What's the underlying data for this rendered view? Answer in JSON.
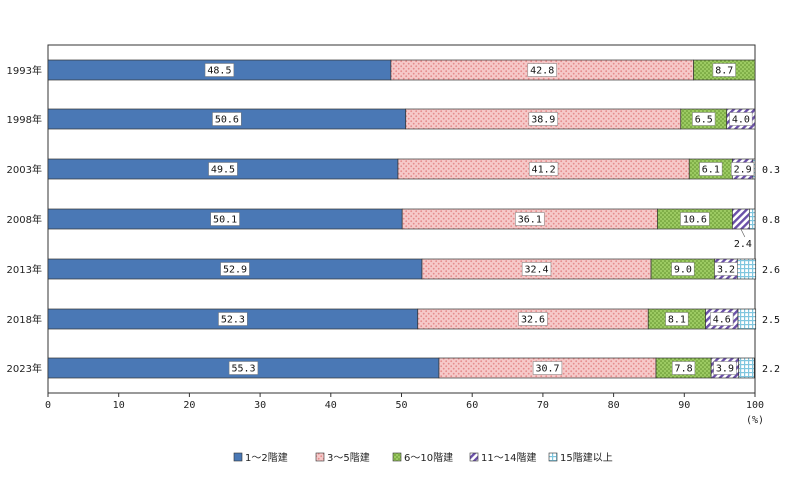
{
  "chart_data": {
    "type": "bar",
    "orientation": "horizontal",
    "stacked": true,
    "categories": [
      "1993年",
      "1998年",
      "2003年",
      "2008年",
      "2013年",
      "2018年",
      "2023年"
    ],
    "series": [
      {
        "name": "1～2階建",
        "values": [
          48.5,
          50.6,
          49.5,
          50.1,
          52.9,
          52.3,
          55.3
        ],
        "labels": [
          "48.5",
          "50.6",
          "49.5",
          "50.1",
          "52.9",
          "52.3",
          "55.3"
        ],
        "color": "#4a78b5"
      },
      {
        "name": "3～5階建",
        "values": [
          42.8,
          38.9,
          41.2,
          36.1,
          32.4,
          32.6,
          30.7
        ],
        "labels": [
          "42.8",
          "38.9",
          "41.2",
          "36.1",
          "32.4",
          "32.6",
          "30.7"
        ],
        "color": "#f2b6b6"
      },
      {
        "name": "6～10階建",
        "values": [
          8.7,
          6.5,
          6.1,
          10.6,
          9.0,
          8.1,
          7.8
        ],
        "labels": [
          "8.7",
          "6.5",
          "6.1",
          "10.6",
          "9.0",
          "8.1",
          "7.8"
        ],
        "color": "#8fbe55"
      },
      {
        "name": "11～14階建",
        "values": [
          0,
          4.0,
          2.9,
          2.4,
          3.2,
          4.6,
          3.9
        ],
        "labels": [
          "",
          "4.0",
          "2.9",
          "2.4",
          "3.2",
          "4.6",
          "3.9"
        ],
        "color": "#6a4fa8"
      },
      {
        "name": "15階建以上",
        "values": [
          0,
          0,
          0.3,
          0.8,
          2.6,
          2.5,
          2.2
        ],
        "labels": [
          "",
          "",
          "0.3",
          "0.8",
          "2.6",
          "2.5",
          "2.2"
        ],
        "color": "#7fc6df"
      }
    ],
    "xlim": [
      0,
      100
    ],
    "xticks": [
      "0",
      "10",
      "20",
      "30",
      "40",
      "50",
      "60",
      "70",
      "80",
      "90",
      "100"
    ],
    "xunit": "(%)",
    "legend_position": "bottom",
    "grid": false
  }
}
